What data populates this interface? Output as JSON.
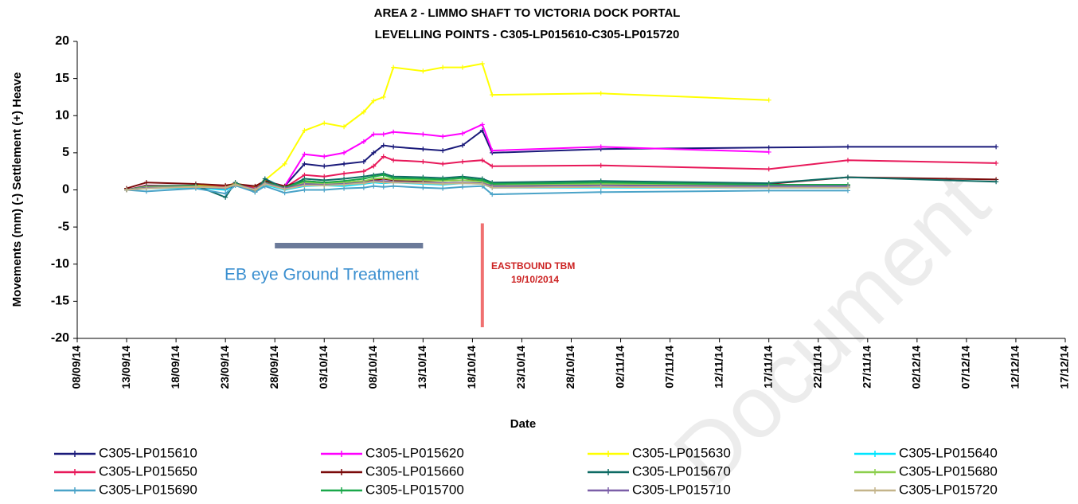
{
  "chart_data": {
    "type": "line",
    "title": "AREA 2 - LIMMO SHAFT TO VICTORIA DOCK PORTAL",
    "subtitle": "LEVELLING POINTS -  C305-LP015610-C305-LP015720",
    "y_label": "Movements (mm) (-) Settlement (+) Heave",
    "x_label": "Date",
    "watermark": "Document",
    "xlim": [
      "2014-09-08",
      "2014-12-17"
    ],
    "xticks": [
      {
        "value": "2014-09-08",
        "label": "08/09/14"
      },
      {
        "value": "2014-09-13",
        "label": "13/09/14"
      },
      {
        "value": "2014-09-18",
        "label": "18/09/14"
      },
      {
        "value": "2014-09-23",
        "label": "23/09/14"
      },
      {
        "value": "2014-09-28",
        "label": "28/09/14"
      },
      {
        "value": "2014-10-03",
        "label": "03/10/14"
      },
      {
        "value": "2014-10-08",
        "label": "08/10/14"
      },
      {
        "value": "2014-10-13",
        "label": "13/10/14"
      },
      {
        "value": "2014-10-18",
        "label": "18/10/14"
      },
      {
        "value": "2014-10-23",
        "label": "23/10/14"
      },
      {
        "value": "2014-10-28",
        "label": "28/10/14"
      },
      {
        "value": "2014-11-02",
        "label": "02/11/14"
      },
      {
        "value": "2014-11-07",
        "label": "07/11/14"
      },
      {
        "value": "2014-11-12",
        "label": "12/11/14"
      },
      {
        "value": "2014-11-17",
        "label": "17/11/14"
      },
      {
        "value": "2014-11-22",
        "label": "22/11/14"
      },
      {
        "value": "2014-11-27",
        "label": "27/11/14"
      },
      {
        "value": "2014-12-02",
        "label": "02/12/14"
      },
      {
        "value": "2014-12-07",
        "label": "07/12/14"
      },
      {
        "value": "2014-12-12",
        "label": "12/12/14"
      },
      {
        "value": "2014-12-17",
        "label": "17/12/14"
      }
    ],
    "ylim": [
      -20,
      20
    ],
    "yticks": [
      -20,
      -15,
      -10,
      -5,
      0,
      5,
      10,
      15,
      20
    ],
    "grid": false,
    "legend": "bottom",
    "x": [
      "2014-09-13",
      "2014-09-15",
      "2014-09-20",
      "2014-09-23",
      "2014-09-24",
      "2014-09-26",
      "2014-09-27",
      "2014-09-29",
      "2014-10-01",
      "2014-10-03",
      "2014-10-05",
      "2014-10-07",
      "2014-10-08",
      "2014-10-09",
      "2014-10-10",
      "2014-10-13",
      "2014-10-15",
      "2014-10-17",
      "2014-10-19",
      "2014-10-20",
      "2014-10-31",
      "2014-11-17",
      "2014-11-25",
      "2014-12-10"
    ],
    "series": [
      {
        "name": "C305-LP015610",
        "color": "#1a1a7a",
        "values": [
          0,
          0.5,
          0.5,
          0.3,
          0.8,
          0.2,
          1.0,
          0.5,
          3.5,
          3.2,
          3.5,
          3.8,
          5.0,
          6.0,
          5.8,
          5.5,
          5.3,
          6.0,
          8.0,
          5.0,
          5.5,
          5.7,
          5.8,
          5.8
        ]
      },
      {
        "name": "C305-LP015620",
        "color": "#ff00ff",
        "values": [
          0,
          0.5,
          0.6,
          0.5,
          0.8,
          0.2,
          1.2,
          0.5,
          4.8,
          4.5,
          5.0,
          6.5,
          7.5,
          7.5,
          7.8,
          7.5,
          7.2,
          7.6,
          8.8,
          5.3,
          5.8,
          5.1,
          null,
          null
        ]
      },
      {
        "name": "C305-LP015630",
        "color": "#ffff00",
        "values": [
          0,
          0.4,
          0.6,
          0.5,
          0.9,
          0.3,
          1.3,
          3.5,
          8.0,
          9.0,
          8.5,
          10.5,
          12.0,
          12.5,
          16.5,
          16.0,
          16.5,
          16.5,
          17.0,
          12.8,
          13.0,
          12.1,
          null,
          null
        ]
      },
      {
        "name": "C305-LP015640",
        "color": "#00e5ff",
        "values": [
          0,
          0.2,
          0.3,
          0.0,
          0.6,
          -0.2,
          0.7,
          0.0,
          0.5,
          0.6,
          0.5,
          0.8,
          1.0,
          0.9,
          1.0,
          0.8,
          0.7,
          0.9,
          0.8,
          0.3,
          0.3,
          0.3,
          0.3,
          null
        ]
      },
      {
        "name": "C305-LP015650",
        "color": "#e8195a",
        "values": [
          0,
          0.6,
          0.5,
          0.4,
          0.9,
          0.2,
          1.0,
          0.3,
          2.0,
          1.8,
          2.2,
          2.5,
          3.2,
          4.5,
          4.0,
          3.8,
          3.5,
          3.8,
          4.0,
          3.2,
          3.3,
          2.8,
          4.0,
          3.6
        ]
      },
      {
        "name": "C305-LP015660",
        "color": "#7a0a0a",
        "values": [
          0.2,
          1.0,
          0.8,
          0.6,
          0.8,
          0.5,
          1.2,
          0.5,
          1.2,
          1.0,
          1.0,
          1.2,
          1.3,
          1.5,
          1.3,
          1.2,
          1.2,
          1.3,
          1.2,
          0.8,
          1.0,
          0.8,
          1.7,
          1.4
        ]
      },
      {
        "name": "C305-LP015670",
        "color": "#0e6b64",
        "values": [
          0,
          0.5,
          0.6,
          -1.0,
          1.0,
          -0.3,
          1.5,
          0.2,
          1.5,
          1.3,
          1.5,
          1.8,
          2.0,
          2.2,
          1.8,
          1.7,
          1.6,
          1.8,
          1.5,
          1.0,
          1.2,
          0.9,
          1.7,
          1.1
        ]
      },
      {
        "name": "C305-LP015680",
        "color": "#8ccf4d",
        "values": [
          0,
          0.4,
          0.5,
          0.3,
          0.8,
          0.0,
          1.0,
          0.3,
          1.0,
          0.9,
          1.0,
          1.2,
          1.5,
          1.6,
          1.4,
          1.3,
          1.2,
          1.3,
          1.1,
          0.7,
          0.8,
          0.6,
          0.6,
          null
        ]
      },
      {
        "name": "C305-LP015690",
        "color": "#4aa3c8",
        "values": [
          0,
          -0.2,
          0.2,
          -0.5,
          0.6,
          -0.3,
          0.5,
          -0.4,
          0.0,
          0.0,
          0.2,
          0.3,
          0.5,
          0.4,
          0.5,
          0.3,
          0.2,
          0.4,
          0.5,
          -0.6,
          -0.3,
          -0.1,
          -0.1,
          null
        ]
      },
      {
        "name": "C305-LP015700",
        "color": "#1aa84a",
        "values": [
          0,
          0.3,
          0.4,
          0.2,
          0.7,
          0.1,
          1.0,
          0.3,
          1.2,
          1.0,
          1.2,
          1.5,
          1.8,
          2.0,
          1.6,
          1.5,
          1.4,
          1.6,
          1.3,
          0.8,
          1.0,
          0.7,
          0.7,
          null
        ]
      },
      {
        "name": "C305-LP015710",
        "color": "#7b5ea7",
        "values": [
          0,
          0.3,
          0.4,
          0.2,
          0.7,
          0.1,
          0.9,
          0.2,
          0.8,
          0.7,
          0.8,
          1.0,
          1.2,
          1.2,
          1.1,
          1.0,
          0.9,
          1.0,
          0.9,
          0.5,
          0.6,
          0.5,
          0.5,
          null
        ]
      },
      {
        "name": "C305-LP015720",
        "color": "#c4b48a",
        "values": [
          0,
          0.2,
          0.4,
          0.3,
          0.7,
          0.0,
          0.8,
          0.1,
          0.6,
          0.6,
          0.7,
          0.9,
          1.1,
          1.0,
          1.0,
          0.9,
          0.8,
          0.9,
          0.8,
          0.3,
          0.4,
          0.3,
          0.3,
          null
        ]
      }
    ],
    "annotations": [
      {
        "text": "EB eye Ground Treatment",
        "color": "#3a8fd0",
        "x_range": [
          "2014-09-28",
          "2014-10-13"
        ],
        "y": -7.5,
        "bar_color": "#6b7a99"
      },
      {
        "text": "EASTBOUND TBM",
        "subtext": "19/10/2014",
        "color": "#cc2222",
        "x": "2014-10-19",
        "y_range": [
          -4.5,
          -18.5
        ],
        "line_color": "#f07070"
      }
    ]
  }
}
